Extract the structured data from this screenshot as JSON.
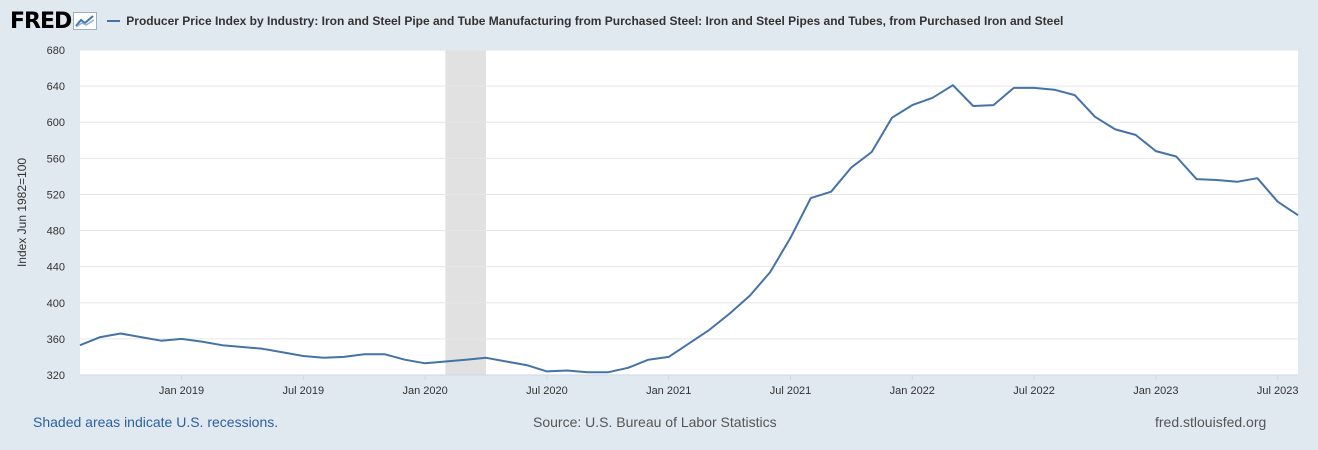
{
  "header": {
    "logo_text": "FRED",
    "legend_label": "Producer Price Index by Industry: Iron and Steel Pipe and Tube Manufacturing from Purchased Steel: Iron and Steel Pipes and Tubes, from Purchased Iron and Steel"
  },
  "footer": {
    "recession_note": "Shaded areas indicate U.S. recessions.",
    "source": "Source: U.S. Bureau of Labor Statistics",
    "site": "fred.stlouisfed.org"
  },
  "colors": {
    "line": "#4572a7",
    "recession": "#e1e1e1",
    "grid": "#e6e6e6",
    "page_bg": "#e1e9f0",
    "plot_bg": "#ffffff"
  },
  "chart_data": {
    "type": "line",
    "title": "Producer Price Index by Industry: Iron and Steel Pipe and Tube Manufacturing from Purchased Steel: Iron and Steel Pipes and Tubes, from Purchased Iron and Steel",
    "xlabel": "",
    "ylabel": "Index Jun 1982=100",
    "ylim": [
      320,
      680
    ],
    "yticks": [
      320,
      360,
      400,
      440,
      480,
      520,
      560,
      600,
      640,
      680
    ],
    "xlim": [
      "2018-08",
      "2023-08"
    ],
    "xticks": [
      {
        "date": "2019-01",
        "label": "Jan 2019"
      },
      {
        "date": "2019-07",
        "label": "Jul 2019"
      },
      {
        "date": "2020-01",
        "label": "Jan 2020"
      },
      {
        "date": "2020-07",
        "label": "Jul 2020"
      },
      {
        "date": "2021-01",
        "label": "Jan 2021"
      },
      {
        "date": "2021-07",
        "label": "Jul 2021"
      },
      {
        "date": "2022-01",
        "label": "Jan 2022"
      },
      {
        "date": "2022-07",
        "label": "Jul 2022"
      },
      {
        "date": "2023-01",
        "label": "Jan 2023"
      },
      {
        "date": "2023-07",
        "label": "Jul 2023"
      }
    ],
    "recessions": [
      {
        "start": "2020-02",
        "end": "2020-04"
      }
    ],
    "grid": true,
    "series": [
      {
        "name": "Producer Price Index by Industry: Iron and Steel Pipe and Tube Manufacturing from Purchased Steel: Iron and Steel Pipes and Tubes, from Purchased Iron and Steel",
        "start": "2018-08",
        "values": [
          353,
          362,
          366,
          362,
          358,
          360,
          357,
          353,
          351,
          349,
          345,
          341,
          339,
          340,
          343,
          343,
          337,
          333,
          335,
          337,
          339,
          335,
          331,
          324,
          325,
          323,
          323,
          328,
          337,
          340,
          355,
          370,
          388,
          408,
          434,
          472,
          516,
          523,
          550,
          567,
          605,
          619,
          627,
          641,
          618,
          619,
          638,
          638,
          636,
          630,
          606,
          592,
          586,
          568,
          562,
          537,
          536,
          534,
          538,
          512,
          497
        ]
      }
    ]
  }
}
